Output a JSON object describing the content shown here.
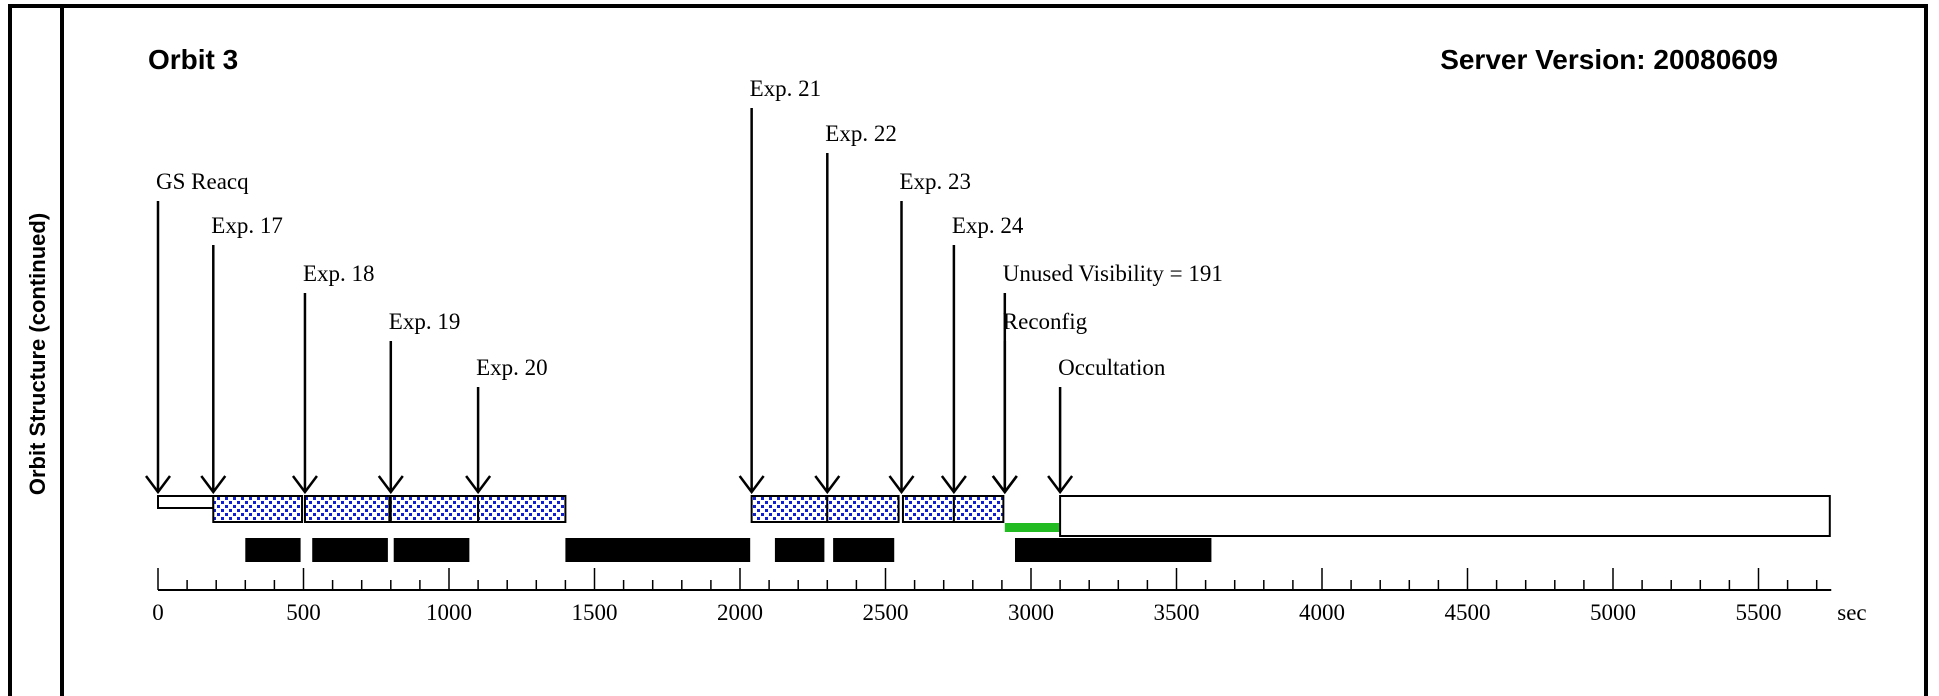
{
  "side_label": "Orbit Structure (continued)",
  "header": {
    "orbit": "Orbit 3",
    "server_version": "Server Version: 20080609"
  },
  "colors": {
    "exposure_fill": "#ffffff",
    "exposure_dots": "#1020d0",
    "unused_visibility": "#22bb22",
    "block": "#000000"
  },
  "chart_data": {
    "type": "timeline",
    "x_unit": "sec",
    "xlim": [
      0,
      5750
    ],
    "ticks_major": [
      0,
      500,
      1000,
      1500,
      2000,
      2500,
      3000,
      3500,
      4000,
      4500,
      5000,
      5500
    ],
    "ticks_minor_step": 100,
    "events": [
      {
        "label": "GS Reacq",
        "t": 0,
        "tier": 2
      },
      {
        "label": "Exp. 17",
        "t": 190,
        "tier": 3
      },
      {
        "label": "Exp. 18",
        "t": 505,
        "tier": 4
      },
      {
        "label": "Exp. 19",
        "t": 800,
        "tier": 5
      },
      {
        "label": "Exp. 20",
        "t": 1100,
        "tier": 6
      },
      {
        "label": "Exp. 21",
        "t": 2040,
        "tier": 0
      },
      {
        "label": "Exp. 22",
        "t": 2300,
        "tier": 1
      },
      {
        "label": "Exp. 23",
        "t": 2555,
        "tier": 2
      },
      {
        "label": "Exp. 24",
        "t": 2735,
        "tier": 3
      },
      {
        "label": "Unused Visibility = 191",
        "t": 2910,
        "tier": 4
      },
      {
        "label": "Reconfig",
        "t": 2910,
        "tier": 5
      },
      {
        "label": "Occultation",
        "t": 3100,
        "tier": 6
      }
    ],
    "segments": [
      {
        "kind": "plain-small",
        "start": 0,
        "end": 190
      },
      {
        "kind": "exposure",
        "start": 190,
        "end": 495
      },
      {
        "kind": "exposure",
        "start": 505,
        "end": 795
      },
      {
        "kind": "exposure",
        "start": 800,
        "end": 1100
      },
      {
        "kind": "exposure",
        "start": 1100,
        "end": 1400
      },
      {
        "kind": "exposure",
        "start": 2040,
        "end": 2300
      },
      {
        "kind": "exposure",
        "start": 2300,
        "end": 2545
      },
      {
        "kind": "exposure",
        "start": 2560,
        "end": 2735
      },
      {
        "kind": "exposure",
        "start": 2735,
        "end": 2905
      },
      {
        "kind": "unused-visibility",
        "start": 2910,
        "end": 3100
      },
      {
        "kind": "occultation",
        "start": 3100,
        "end": 5745
      }
    ],
    "blocks": [
      {
        "start": 300,
        "end": 490
      },
      {
        "start": 530,
        "end": 790
      },
      {
        "start": 810,
        "end": 1070
      },
      {
        "start": 1400,
        "end": 2035
      },
      {
        "start": 2120,
        "end": 2290
      },
      {
        "start": 2320,
        "end": 2530
      },
      {
        "start": 2945,
        "end": 3620
      }
    ]
  }
}
